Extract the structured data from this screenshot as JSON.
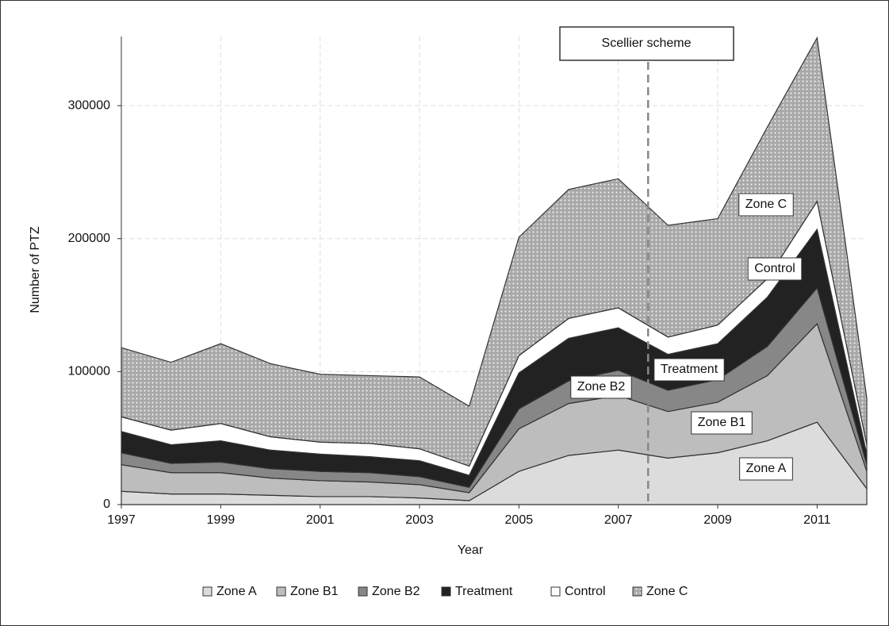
{
  "chart_data": {
    "type": "stacked_area",
    "x_label": "Year",
    "y_label": "Number of PTZ",
    "x": [
      1997,
      1998,
      1999,
      2000,
      2001,
      2002,
      2003,
      2004,
      2005,
      2006,
      2007,
      2008,
      2009,
      2010,
      2011,
      2012
    ],
    "series": [
      {
        "name": "Zone A",
        "color": "#dcdcdc",
        "values": [
          10000,
          8000,
          8000,
          7000,
          6000,
          6000,
          5000,
          3000,
          25000,
          37000,
          41000,
          35000,
          39000,
          48000,
          62000,
          12000
        ]
      },
      {
        "name": "Zone B1",
        "color": "#bdbdbd",
        "values": [
          20000,
          16000,
          16000,
          13000,
          12000,
          11000,
          10000,
          6000,
          32000,
          39000,
          41000,
          35000,
          38000,
          49000,
          74000,
          13000
        ]
      },
      {
        "name": "Zone B2",
        "color": "#878787",
        "values": [
          9000,
          7000,
          8000,
          7000,
          7000,
          7000,
          6000,
          4000,
          15000,
          17000,
          19000,
          16000,
          17000,
          22000,
          27000,
          5000
        ]
      },
      {
        "name": "Treatment",
        "color": "#222222",
        "values": [
          16000,
          14000,
          16000,
          14000,
          13000,
          12000,
          12000,
          9000,
          27000,
          32000,
          32000,
          27000,
          27000,
          37000,
          44000,
          8000
        ]
      },
      {
        "name": "Control",
        "color": "#ffffff",
        "values": [
          11000,
          11000,
          13000,
          10000,
          9000,
          10000,
          9000,
          7000,
          13000,
          15000,
          15000,
          13000,
          14000,
          14000,
          21000,
          7000
        ]
      },
      {
        "name": "Zone C",
        "color": "#a8a8a8",
        "pattern": "dots",
        "values": [
          52000,
          51000,
          60000,
          55000,
          51000,
          51000,
          54000,
          45000,
          89000,
          97000,
          97000,
          84000,
          80000,
          114000,
          123000,
          35000
        ]
      }
    ],
    "xlim": [
      1997,
      2012
    ],
    "ylim": [
      0,
      352000
    ],
    "xticks": [
      1997,
      1999,
      2001,
      2003,
      2005,
      2007,
      2009,
      2011
    ],
    "yticks": [
      0,
      100000,
      200000,
      300000
    ],
    "grid": true,
    "annotation": {
      "text": "Scellier scheme",
      "x": 2007.6
    }
  }
}
